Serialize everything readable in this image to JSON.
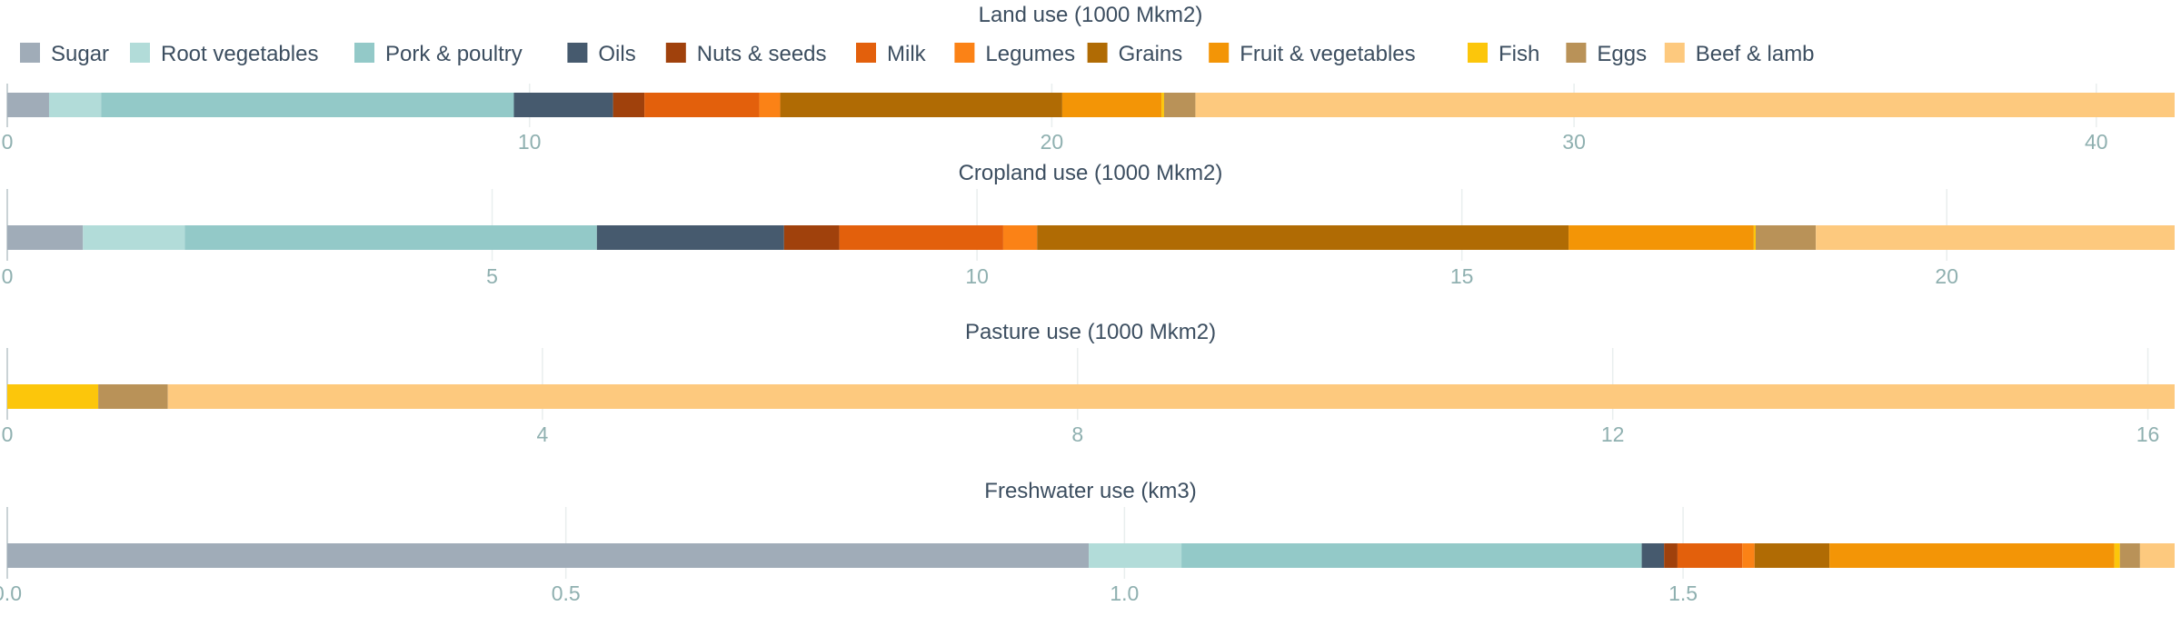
{
  "chart_data": {
    "type": "bar",
    "stacked": true,
    "orientation": "horizontal",
    "legend": {
      "placement": "top-left",
      "items": [
        "Sugar",
        "Root vegetables",
        "Pork & poultry",
        "Oils",
        "Nuts & seeds",
        "Milk",
        "Legumes",
        "Grains",
        "Fruit & vegetables",
        "Fish",
        "Eggs",
        "Beef & lamb"
      ]
    },
    "colors": {
      "Sugar": "#a0acb8",
      "Root vegetables": "#b2dcd9",
      "Pork & poultry": "#93c9c8",
      "Oils": "#465a6e",
      "Nuts & seeds": "#a0410c",
      "Milk": "#e3600c",
      "Legumes": "#fb8216",
      "Grains": "#b06b04",
      "Fruit & vegetables": "#f39506",
      "Fish": "#fcc60b",
      "Eggs": "#b99258",
      "Beef & lamb": "#fdc97e"
    },
    "panels": [
      {
        "title": "Land use (1000 Mkm2)",
        "xlim": [
          0,
          41.5
        ],
        "ticks": [
          0,
          10,
          20,
          30,
          40
        ],
        "tick_labels": [
          "0",
          "10",
          "20",
          "30",
          "40"
        ],
        "values": {
          "Sugar": 0.8,
          "Root vegetables": 1.0,
          "Pork & poultry": 7.9,
          "Oils": 1.9,
          "Nuts & seeds": 0.6,
          "Milk": 2.2,
          "Legumes": 0.4,
          "Grains": 5.4,
          "Fruit & vegetables": 1.9,
          "Fish": 0.05,
          "Eggs": 0.6,
          "Beef & lamb": 18.75
        }
      },
      {
        "title": "Cropland use (1000 Mkm2)",
        "xlim": [
          0,
          22.35
        ],
        "ticks": [
          0,
          5,
          10,
          15,
          20
        ],
        "tick_labels": [
          "0",
          "5",
          "10",
          "15",
          "20"
        ],
        "values": {
          "Sugar": 0.78,
          "Root vegetables": 1.05,
          "Pork & poultry": 4.25,
          "Oils": 1.93,
          "Nuts & seeds": 0.57,
          "Milk": 1.69,
          "Legumes": 0.35,
          "Grains": 5.48,
          "Fruit & vegetables": 1.91,
          "Fish": 0.02,
          "Eggs": 0.62,
          "Beef & lamb": 3.7
        }
      },
      {
        "title": "Pasture use (1000 Mkm2)",
        "xlim": [
          0,
          16.2
        ],
        "ticks": [
          0,
          4,
          8,
          12,
          16
        ],
        "tick_labels": [
          "0",
          "4",
          "8",
          "12",
          "16"
        ],
        "values": {
          "Sugar": 0,
          "Root vegetables": 0,
          "Pork & poultry": 0,
          "Oils": 0,
          "Nuts & seeds": 0,
          "Milk": 0,
          "Legumes": 0,
          "Grains": 0,
          "Fruit & vegetables": 0,
          "Fish": 0.68,
          "Eggs": 0.52,
          "Beef & lamb": 15.0
        }
      },
      {
        "title": "Freshwater use (km3)",
        "xlim": [
          0,
          1.94
        ],
        "ticks": [
          0,
          0.5,
          1.0,
          1.5
        ],
        "tick_labels": [
          "0.0",
          "0.5",
          "1.0",
          "1.5"
        ],
        "values": {
          "Sugar": 0.968,
          "Root vegetables": 0.083,
          "Pork & poultry": 0.412,
          "Oils": 0.02,
          "Nuts & seeds": 0.012,
          "Milk": 0.058,
          "Legumes": 0.011,
          "Grains": 0.067,
          "Fruit & vegetables": 0.255,
          "Fish": 0.005,
          "Eggs": 0.018,
          "Beef & lamb": 0.031
        }
      }
    ]
  }
}
